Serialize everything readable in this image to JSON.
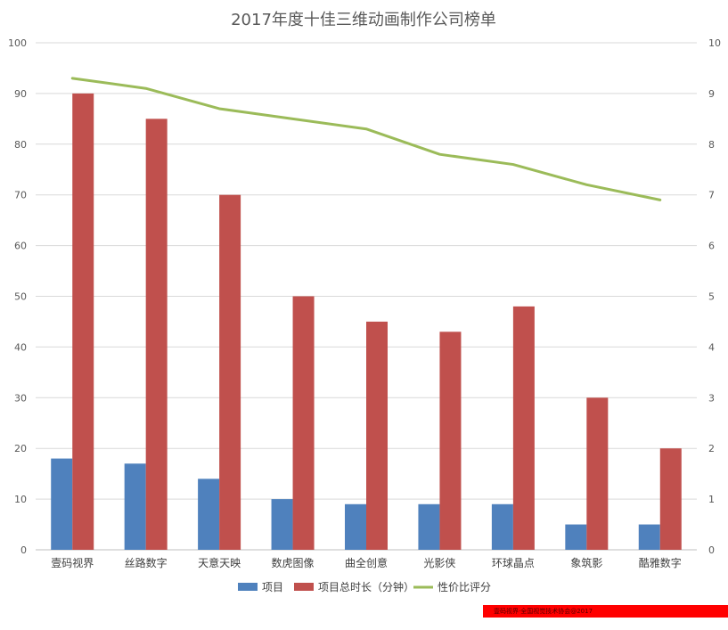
{
  "chart_data": {
    "type": "bar",
    "title": "2017年度十佳三维动画制作公司榜单",
    "categories": [
      "壹码视界",
      "丝路数字",
      "天意天映",
      "数虎图像",
      "曲全创意",
      "光影侠",
      "环球晶点",
      "象筑影",
      "酷雅数字"
    ],
    "series": [
      {
        "name": "项目",
        "type": "bar",
        "axis": "left",
        "color": "#4f81bd",
        "values": [
          18,
          17,
          14,
          10,
          9,
          9,
          9,
          5,
          5
        ]
      },
      {
        "name": "项目总时长（分钟）",
        "type": "bar",
        "axis": "left",
        "color": "#c0504d",
        "values": [
          90,
          85,
          70,
          50,
          45,
          43,
          48,
          30,
          20
        ]
      },
      {
        "name": "性价比评分",
        "type": "line",
        "axis": "right",
        "color": "#9bbb59",
        "values": [
          9.3,
          9.1,
          8.7,
          8.5,
          8.3,
          7.8,
          7.6,
          7.2,
          6.9
        ]
      }
    ],
    "y_left": {
      "min": 0,
      "max": 100,
      "step": 10,
      "ticks": [
        "0",
        "10",
        "20",
        "30",
        "40",
        "50",
        "60",
        "70",
        "80",
        "90",
        "100"
      ]
    },
    "y_right": {
      "min": 0,
      "max": 10,
      "step": 1,
      "ticks": [
        "0",
        "1",
        "2",
        "3",
        "4",
        "5",
        "6",
        "7",
        "8",
        "9",
        "10"
      ]
    },
    "grid": true,
    "legend_position": "bottom"
  },
  "footer": {
    "text": "壹码视界·全国视觉技术协会@2017",
    "color": "#ff0000"
  }
}
